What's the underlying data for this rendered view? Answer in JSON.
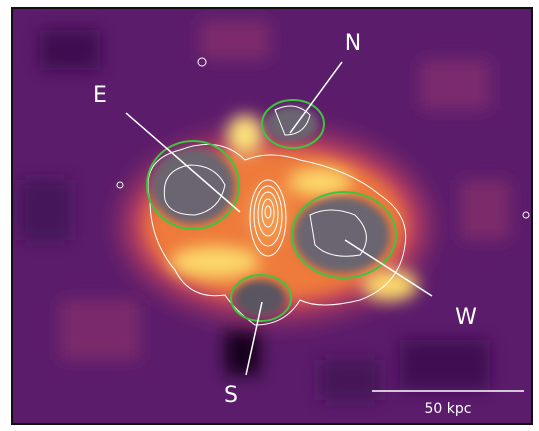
{
  "labels": {
    "north": "N",
    "east": "E",
    "west": "W",
    "south": "S"
  },
  "scale_bar": {
    "label": "50 kpc"
  }
}
